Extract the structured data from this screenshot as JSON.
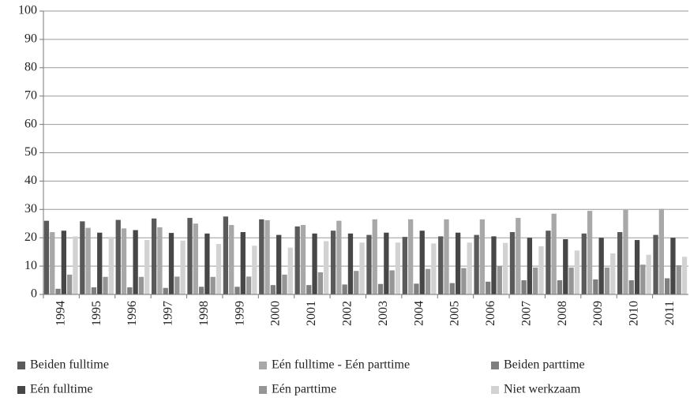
{
  "chart_data": {
    "type": "bar",
    "categories": [
      "1994",
      "1995",
      "1996",
      "1997",
      "1998",
      "1999",
      "2000",
      "2001",
      "2002",
      "2003",
      "2004",
      "2005",
      "2006",
      "2007",
      "2008",
      "2009",
      "2010",
      "2011"
    ],
    "series": [
      {
        "name": "Beiden fulltime",
        "color": "#5a5a5a",
        "values": [
          26,
          25.8,
          26.3,
          26.8,
          27,
          27.5,
          26.5,
          24,
          22.5,
          21,
          20.3,
          20.5,
          21,
          22,
          22.5,
          21.5,
          22,
          21
        ]
      },
      {
        "name": "Eén fulltime - Eén parttime",
        "color": "#a8a8a8",
        "values": [
          22,
          23.5,
          23.3,
          23.7,
          25,
          24.5,
          26.2,
          24.5,
          26,
          26.5,
          26.5,
          26.5,
          26.5,
          27,
          28.5,
          29.5,
          29.8,
          30.2
        ]
      },
      {
        "name": "Beiden parttime",
        "color": "#7f7f7f",
        "values": [
          2,
          2.5,
          2.5,
          2.3,
          2.7,
          2.7,
          3.3,
          3.3,
          3.5,
          3.7,
          3.8,
          4,
          4.5,
          5,
          5,
          5.3,
          5,
          5.7
        ]
      },
      {
        "name": "Eén fulltime",
        "color": "#474747",
        "values": [
          22.5,
          21.8,
          22.7,
          21.7,
          21.5,
          22,
          21,
          21.5,
          21.5,
          21.8,
          22.5,
          21.8,
          20.5,
          20,
          19.5,
          20,
          19.2,
          20
        ]
      },
      {
        "name": "Eén parttime",
        "color": "#969696",
        "values": [
          7,
          6.2,
          6.2,
          6.3,
          6.2,
          6.3,
          7,
          7.8,
          8.3,
          8.5,
          9,
          9.3,
          10,
          9.5,
          9.5,
          9.5,
          10.5,
          10.3
        ]
      },
      {
        "name": "Niet werkzaam",
        "color": "#d2d2d2",
        "values": [
          20.5,
          20.3,
          19.2,
          19,
          17.8,
          17.2,
          16.5,
          18.8,
          18.3,
          18.3,
          18,
          18.3,
          18.2,
          17,
          15.5,
          14.5,
          14,
          13.3
        ]
      }
    ],
    "ylim": [
      0,
      100
    ],
    "yticks": [
      0,
      10,
      20,
      30,
      40,
      50,
      60,
      70,
      80,
      90,
      100
    ],
    "grid": true,
    "legend": "bottom"
  }
}
